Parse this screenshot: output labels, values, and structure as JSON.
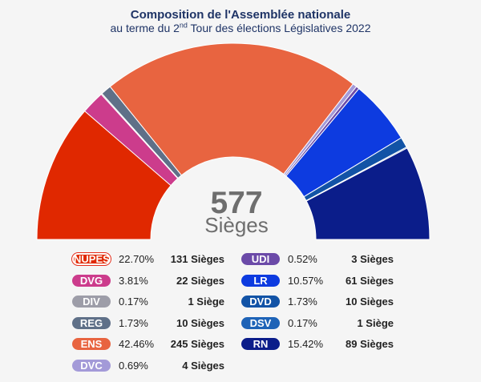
{
  "title": "Composition de l'Assemblée nationale",
  "subtitle_pre": "au terme du 2",
  "subtitle_sup": "nd",
  "subtitle_post": " Tour des élections Législatives 2022",
  "center": {
    "total": "577",
    "label": "Sièges"
  },
  "chart_data": {
    "type": "pie",
    "variant": "semicircle-donut",
    "total_seats": 577,
    "series": [
      {
        "name": "NUPES",
        "seats": 131,
        "percent": "22.70%",
        "seats_label": "131 Sièges",
        "color": "#e02800"
      },
      {
        "name": "DVG",
        "seats": 22,
        "percent": "3.81%",
        "seats_label": "22 Sièges",
        "color": "#cc3c8c"
      },
      {
        "name": "DIV",
        "seats": 1,
        "percent": "0.17%",
        "seats_label": "1 Siège",
        "color": "#9d9da8"
      },
      {
        "name": "REG",
        "seats": 10,
        "percent": "1.73%",
        "seats_label": "10 Sièges",
        "color": "#5f7088"
      },
      {
        "name": "ENS",
        "seats": 245,
        "percent": "42.46%",
        "seats_label": "245 Sièges",
        "color": "#e86440"
      },
      {
        "name": "DVC",
        "seats": 4,
        "percent": "0.69%",
        "seats_label": "4 Sièges",
        "color": "#a39ad8"
      },
      {
        "name": "UDI",
        "seats": 3,
        "percent": "0.52%",
        "seats_label": "3 Sièges",
        "color": "#6b4aa8"
      },
      {
        "name": "LR",
        "seats": 61,
        "percent": "10.57%",
        "seats_label": "61 Sièges",
        "color": "#0d3be0"
      },
      {
        "name": "DVD",
        "seats": 10,
        "percent": "1.73%",
        "seats_label": "10 Sièges",
        "color": "#1253a6"
      },
      {
        "name": "DSV",
        "seats": 1,
        "percent": "0.17%",
        "seats_label": "1 Siège",
        "color": "#1e63b7"
      },
      {
        "name": "RN",
        "seats": 89,
        "percent": "15.42%",
        "seats_label": "89 Sièges",
        "color": "#0b1d8a"
      }
    ]
  }
}
